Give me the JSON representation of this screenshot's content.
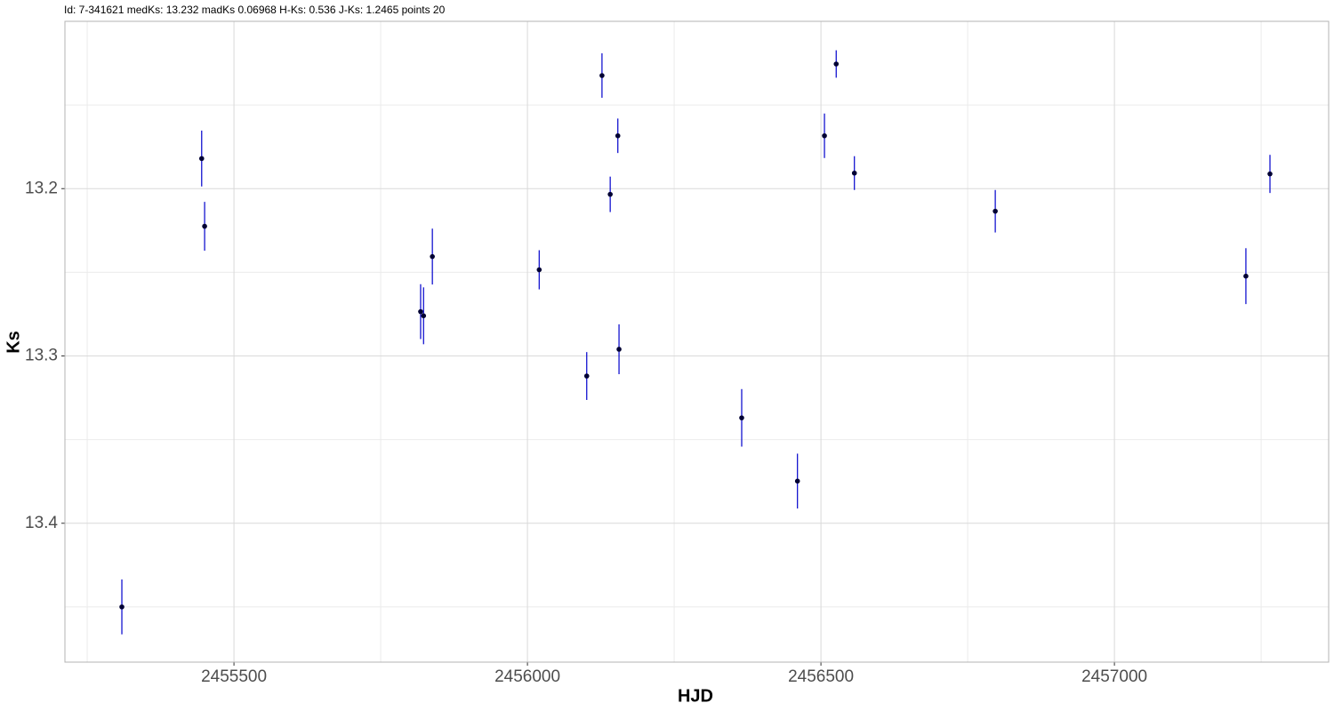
{
  "chart_data": {
    "type": "errorbar-scatter",
    "title": "Id: 7-341621 medKs: 13.232 madKs 0.06968 H-Ks: 0.536 J-Ks: 1.2465 points 20",
    "x_label": "HJD",
    "y_label": "Ks",
    "x": [
      2455309,
      2455445,
      2455450,
      2455818,
      2455823,
      2455838,
      2456020,
      2456101,
      2456127,
      2456141,
      2456154,
      2456156,
      2456365,
      2456460,
      2456506,
      2456526,
      2456557,
      2456797,
      2457224,
      2457265
    ],
    "values": [
      13.45,
      13.182,
      13.2225,
      13.2735,
      13.276,
      13.2406,
      13.2485,
      13.312,
      13.1324,
      13.2034,
      13.1684,
      13.296,
      13.337,
      13.3748,
      13.1684,
      13.1255,
      13.1907,
      13.2135,
      13.2523,
      13.1912
    ],
    "errors": [
      0.0164,
      0.0167,
      0.0146,
      0.0164,
      0.017,
      0.0167,
      0.0117,
      0.0143,
      0.0133,
      0.0106,
      0.0103,
      0.0149,
      0.0172,
      0.0164,
      0.0133,
      0.0082,
      0.0101,
      0.0127,
      0.0167,
      0.0114
    ],
    "color": "#000033",
    "error_color": "#0000cc",
    "xlim": [
      2455212,
      2457365
    ],
    "xticks": [
      2455500,
      2456000,
      2456500,
      2457000
    ],
    "ylim": [
      13.1,
      13.483
    ],
    "yticks": [
      13.2,
      13.3,
      13.4
    ],
    "y_reversed": true,
    "grid": true,
    "minor_grid": true
  }
}
